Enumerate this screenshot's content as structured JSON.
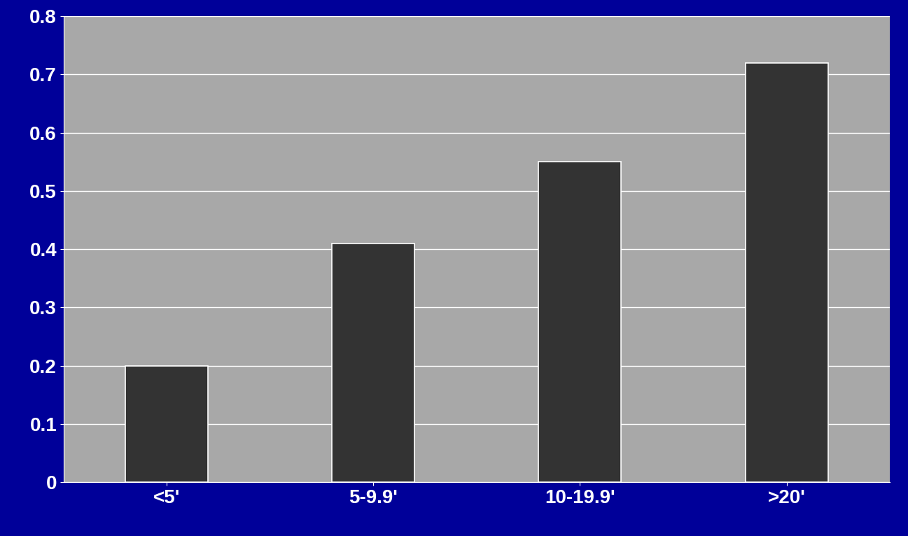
{
  "chart_data": {
    "type": "bar",
    "categories": [
      "<5'",
      "5-9.9'",
      "10-19.9'",
      ">20'"
    ],
    "values": [
      0.2,
      0.41,
      0.55,
      0.72
    ],
    "color": "#333333",
    "ylim": [
      0,
      0.8
    ],
    "yticks": [
      0,
      0.1,
      0.2,
      0.3,
      0.4,
      0.5,
      0.6,
      0.7,
      0.8
    ],
    "grid": true
  }
}
